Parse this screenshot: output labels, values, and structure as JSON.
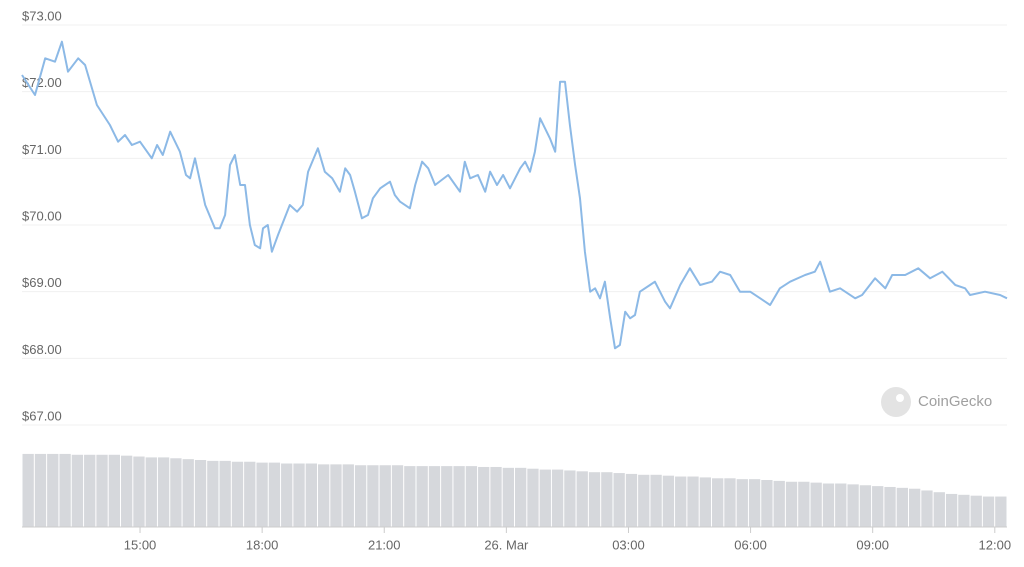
{
  "chart_data": {
    "type": "line",
    "watermark": "CoinGecko",
    "x": [
      12.1,
      12.42,
      12.67,
      12.91,
      13.08,
      13.23,
      13.48,
      13.65,
      13.94,
      14.26,
      14.46,
      14.63,
      14.8,
      15.0,
      15.29,
      15.42,
      15.56,
      15.74,
      15.98,
      16.13,
      16.23,
      16.35,
      16.6,
      16.84,
      16.96,
      17.09,
      17.21,
      17.33,
      17.46,
      17.58,
      17.7,
      17.82,
      17.95,
      18.02,
      18.14,
      18.24,
      18.39,
      18.68,
      18.86,
      19.0,
      19.13,
      19.37,
      19.54,
      19.72,
      19.91,
      20.04,
      20.16,
      20.28,
      20.45,
      20.6,
      20.72,
      20.9,
      21.14,
      21.26,
      21.39,
      21.63,
      21.76,
      21.93,
      22.08,
      22.25,
      22.57,
      22.86,
      22.98,
      23.11,
      23.3,
      23.48,
      23.6,
      23.77,
      23.92,
      24.09,
      24.34,
      24.46,
      24.58,
      24.7,
      24.83,
      25.07,
      25.2,
      25.32,
      25.44,
      25.56,
      25.69,
      25.81,
      25.93,
      26.06,
      26.18,
      26.3,
      26.42,
      26.55,
      26.67,
      26.79,
      26.92,
      27.04,
      27.16,
      27.28,
      27.53,
      27.65,
      27.9,
      28.02,
      28.27,
      28.51,
      28.76,
      29.05,
      29.25,
      29.5,
      29.74,
      29.99,
      30.36,
      30.48,
      30.72,
      30.97,
      31.34,
      31.58,
      31.71,
      31.95,
      32.2,
      32.57,
      32.74,
      33.06,
      33.31,
      33.48,
      33.8,
      34.12,
      34.41,
      34.71,
      35.03,
      35.27,
      35.39,
      35.76,
      36.13,
      36.3
    ],
    "series": [
      {
        "color": "#8cb9e6",
        "values": [
          72.25,
          71.95,
          72.5,
          72.45,
          72.75,
          72.3,
          72.5,
          72.4,
          71.8,
          71.5,
          71.25,
          71.35,
          71.2,
          71.25,
          71.0,
          71.2,
          71.05,
          71.4,
          71.1,
          70.75,
          70.7,
          71.0,
          70.3,
          69.95,
          69.95,
          70.15,
          70.9,
          71.05,
          70.6,
          70.6,
          70.0,
          69.7,
          69.65,
          69.95,
          70.0,
          69.6,
          69.85,
          70.3,
          70.2,
          70.3,
          70.8,
          71.15,
          70.8,
          70.7,
          70.5,
          70.85,
          70.75,
          70.5,
          70.1,
          70.15,
          70.4,
          70.55,
          70.65,
          70.45,
          70.35,
          70.25,
          70.6,
          70.95,
          70.85,
          70.6,
          70.75,
          70.5,
          70.95,
          70.7,
          70.75,
          70.5,
          70.8,
          70.6,
          70.75,
          70.55,
          70.85,
          70.95,
          70.8,
          71.1,
          71.6,
          71.3,
          71.1,
          72.15,
          72.15,
          71.5,
          70.9,
          70.4,
          69.6,
          69.0,
          69.05,
          68.9,
          69.15,
          68.6,
          68.15,
          68.2,
          68.7,
          68.6,
          68.65,
          69.0,
          69.1,
          69.15,
          68.85,
          68.75,
          69.1,
          69.35,
          69.1,
          69.15,
          69.3,
          69.25,
          69.0,
          69.0,
          68.85,
          68.8,
          69.05,
          69.15,
          69.25,
          69.3,
          69.45,
          69.0,
          69.05,
          68.9,
          68.95,
          69.2,
          69.05,
          69.25,
          69.25,
          69.35,
          69.2,
          69.3,
          69.1,
          69.05,
          68.95,
          69.0,
          68.95,
          68.9
        ]
      }
    ],
    "volume": {
      "color": "#d6d8dc",
      "vlim": [
        0,
        100
      ],
      "values": [
        84,
        84,
        84,
        84,
        83,
        83,
        83,
        83,
        82,
        81,
        80,
        80,
        79,
        78,
        77,
        76,
        76,
        75,
        75,
        74,
        74,
        73,
        73,
        73,
        72,
        72,
        72,
        71,
        71,
        71,
        71,
        70,
        70,
        70,
        70,
        70,
        70,
        69,
        69,
        68,
        68,
        67,
        66,
        66,
        65,
        64,
        63,
        63,
        62,
        61,
        60,
        60,
        59,
        58,
        58,
        57,
        56,
        56,
        55,
        55,
        54,
        53,
        52,
        52,
        51,
        50,
        50,
        49,
        48,
        47,
        46,
        45,
        44,
        42,
        40,
        38,
        37,
        36,
        35,
        35
      ]
    },
    "xlim": [
      12.1,
      36.3
    ],
    "ylim": [
      67,
      73
    ],
    "xticks": [
      {
        "value": 15,
        "label": "15:00"
      },
      {
        "value": 18,
        "label": "18:00"
      },
      {
        "value": 21,
        "label": "21:00"
      },
      {
        "value": 24,
        "label": "26. Mar"
      },
      {
        "value": 27,
        "label": "03:00"
      },
      {
        "value": 30,
        "label": "06:00"
      },
      {
        "value": 33,
        "label": "09:00"
      },
      {
        "value": 36,
        "label": "12:00"
      }
    ],
    "yticks": [
      {
        "value": 67,
        "label": "$67.00"
      },
      {
        "value": 68,
        "label": "$68.00"
      },
      {
        "value": 69,
        "label": "$69.00"
      },
      {
        "value": 70,
        "label": "$70.00"
      },
      {
        "value": 71,
        "label": "$71.00"
      },
      {
        "value": 72,
        "label": "$72.00"
      },
      {
        "value": 73,
        "label": "$73.00"
      }
    ],
    "grid": true
  }
}
